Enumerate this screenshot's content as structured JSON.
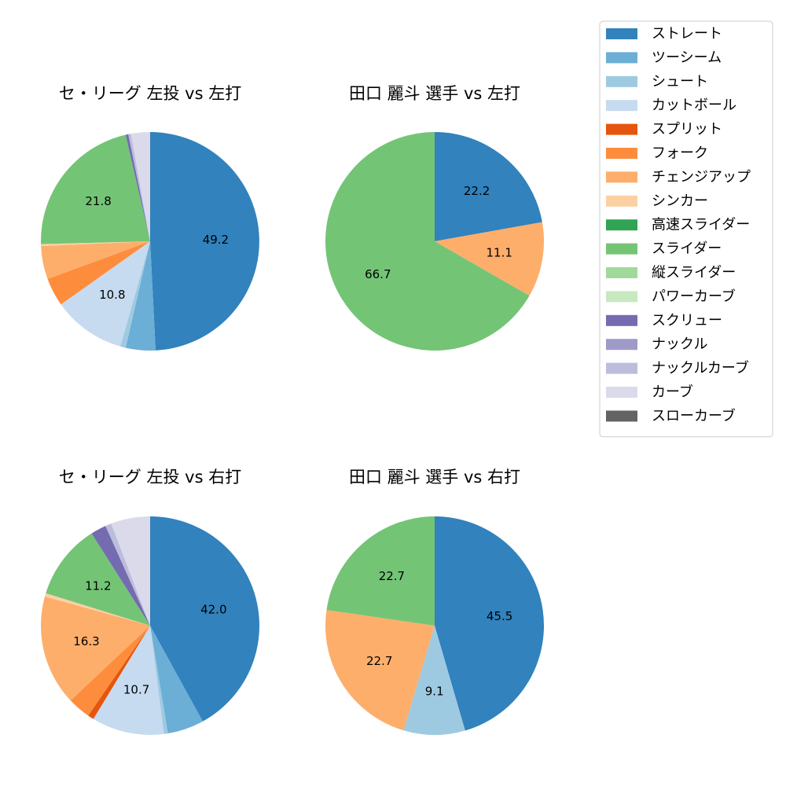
{
  "colors": {
    "ストレート": "#3182bd",
    "ツーシーム": "#6baed6",
    "シュート": "#9ecae1",
    "カットボール": "#c6dbef",
    "スプリット": "#e6550d",
    "フォーク": "#fd8d3c",
    "チェンジアップ": "#fdae6b",
    "シンカー": "#fdd0a2",
    "高速スライダー": "#31a354",
    "スライダー": "#74c476",
    "縦スライダー": "#a1d99b",
    "パワーカーブ": "#c7e9c0",
    "スクリュー": "#756bb1",
    "ナックル": "#9e9ac8",
    "ナックルカーブ": "#bcbddc",
    "カーブ": "#dadaeb",
    "スローカーブ": "#636363"
  },
  "legend": {
    "placement": "upper-right",
    "entries": [
      "ストレート",
      "ツーシーム",
      "シュート",
      "カットボール",
      "スプリット",
      "フォーク",
      "チェンジアップ",
      "シンカー",
      "高速スライダー",
      "スライダー",
      "縦スライダー",
      "パワーカーブ",
      "スクリュー",
      "ナックル",
      "ナックルカーブ",
      "カーブ",
      "スローカーブ"
    ]
  },
  "chart_data": [
    {
      "type": "pie",
      "title": "セ・リーグ 左投 vs 左打",
      "slices": [
        {
          "label": "ストレート",
          "value": 49.2,
          "display": "49.2"
        },
        {
          "label": "ツーシーム",
          "value": 4.4
        },
        {
          "label": "シュート",
          "value": 0.8
        },
        {
          "label": "カットボール",
          "value": 10.8,
          "display": "10.8"
        },
        {
          "label": "フォーク",
          "value": 4.2
        },
        {
          "label": "チェンジアップ",
          "value": 4.9
        },
        {
          "label": "シンカー",
          "value": 0.3
        },
        {
          "label": "スライダー",
          "value": 21.8,
          "display": "21.8"
        },
        {
          "label": "スクリュー",
          "value": 0.4
        },
        {
          "label": "ナックルカーブ",
          "value": 0.4
        },
        {
          "label": "カーブ",
          "value": 2.8
        }
      ]
    },
    {
      "type": "pie",
      "title": "田口 麗斗 選手 vs 左打",
      "slices": [
        {
          "label": "ストレート",
          "value": 22.2,
          "display": "22.2"
        },
        {
          "label": "チェンジアップ",
          "value": 11.1,
          "display": "11.1"
        },
        {
          "label": "スライダー",
          "value": 66.7,
          "display": "66.7"
        }
      ]
    },
    {
      "type": "pie",
      "title": "セ・リーグ 左投 vs 右打",
      "slices": [
        {
          "label": "ストレート",
          "value": 42.0,
          "display": "42.0"
        },
        {
          "label": "ツーシーム",
          "value": 5.4
        },
        {
          "label": "シュート",
          "value": 0.6
        },
        {
          "label": "カットボール",
          "value": 10.7,
          "display": "10.7"
        },
        {
          "label": "スプリット",
          "value": 0.9
        },
        {
          "label": "フォーク",
          "value": 3.4
        },
        {
          "label": "チェンジアップ",
          "value": 16.3,
          "display": "16.3"
        },
        {
          "label": "シンカー",
          "value": 0.5
        },
        {
          "label": "スライダー",
          "value": 11.2,
          "display": "11.2"
        },
        {
          "label": "スクリュー",
          "value": 2.3
        },
        {
          "label": "ナックルカーブ",
          "value": 0.9
        },
        {
          "label": "カーブ",
          "value": 5.8
        }
      ]
    },
    {
      "type": "pie",
      "title": "田口 麗斗 選手 vs 右打",
      "slices": [
        {
          "label": "ストレート",
          "value": 45.5,
          "display": "45.5"
        },
        {
          "label": "シュート",
          "value": 9.1,
          "display": "9.1"
        },
        {
          "label": "チェンジアップ",
          "value": 22.7,
          "display": "22.7"
        },
        {
          "label": "スライダー",
          "value": 22.7,
          "display": "22.7"
        }
      ]
    }
  ]
}
